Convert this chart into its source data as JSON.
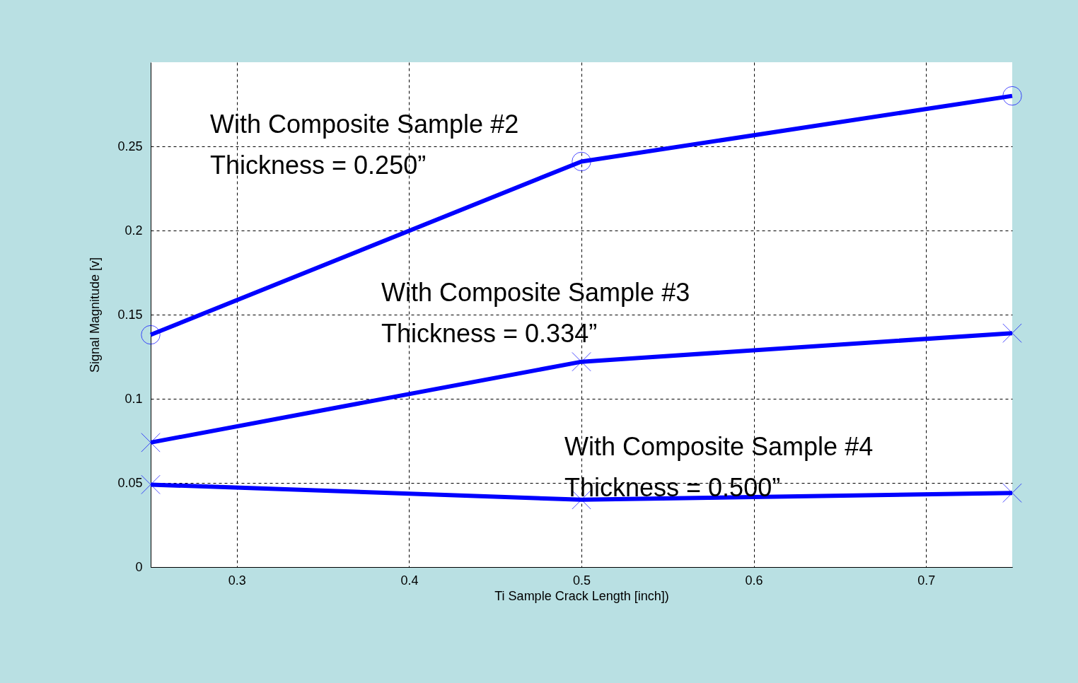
{
  "chart_data": {
    "type": "line",
    "xlabel": "Ti Sample Crack Length [inch])",
    "ylabel": "Signal Magnitude [v]",
    "x": [
      0.25,
      0.5,
      0.75
    ],
    "series": [
      {
        "color": "#0000ff",
        "values": [
          0.138,
          0.241,
          0.28
        ],
        "marker": "circle"
      },
      {
        "color": "#0000ff",
        "values": [
          0.074,
          0.122,
          0.139
        ],
        "marker": "cross"
      },
      {
        "color": "#0000ff",
        "values": [
          0.049,
          0.04,
          0.044
        ],
        "marker": "cross"
      }
    ],
    "xlim": [
      0.25,
      0.75
    ],
    "xticks": [
      0.3,
      0.4,
      0.5,
      0.6,
      0.7
    ],
    "ylim": [
      0,
      0.3
    ],
    "yticks": [
      0,
      0.05,
      0.1,
      0.15,
      0.2,
      0.25
    ],
    "grid": true,
    "line_style": "solid",
    "annotations": [
      "With Composite Sample #2\nThickness = 0.250”",
      "With Composite Sample #3\nThickness = 0.334”",
      "With Composite Sample #4\nThickness = 0.500”"
    ]
  }
}
